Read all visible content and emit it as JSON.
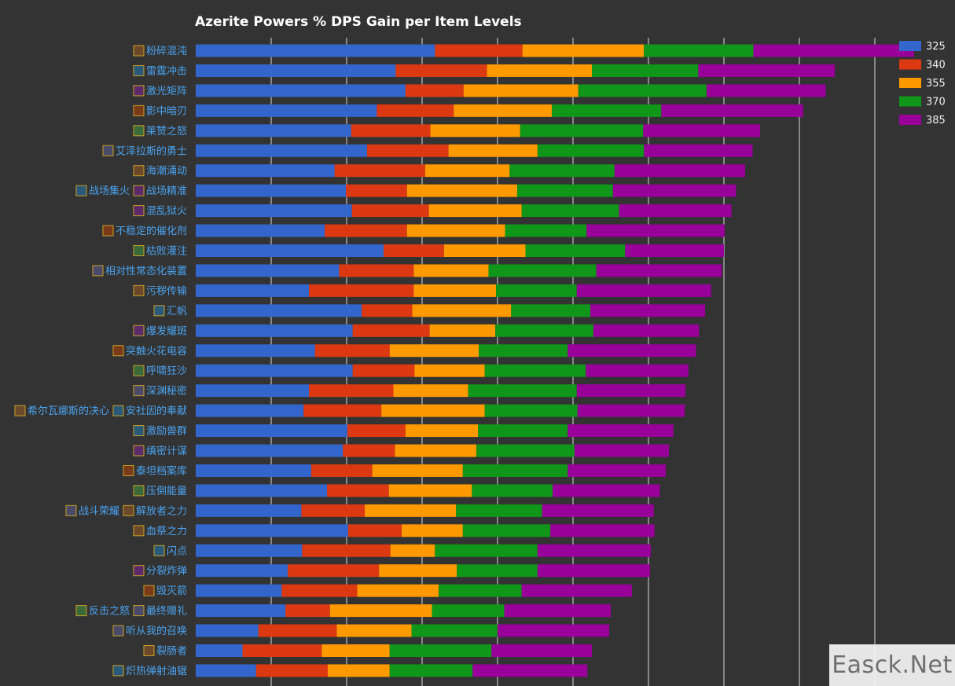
{
  "chart_data": {
    "type": "bar",
    "orientation": "horizontal",
    "stacked": true,
    "title": "Azerite Powers % DPS Gain per Item Levels",
    "xlabel": "",
    "ylabel": "",
    "xlim": [
      0,
      9.4
    ],
    "grid": true,
    "legend_position": "top-right",
    "categories": [
      {
        "parts": [
          "粉碎混沌"
        ],
        "icons": [
          "azerite-power-icon"
        ]
      },
      {
        "parts": [
          "雷霆冲击"
        ],
        "icons": [
          "azerite-power-icon"
        ]
      },
      {
        "parts": [
          "激光矩阵"
        ],
        "icons": [
          "azerite-power-icon"
        ]
      },
      {
        "parts": [
          "影中暗刃"
        ],
        "icons": [
          "azerite-power-icon"
        ]
      },
      {
        "parts": [
          "莱赞之怒"
        ],
        "icons": [
          "azerite-power-icon"
        ]
      },
      {
        "parts": [
          "艾泽拉斯的勇士"
        ],
        "icons": [
          "azerite-power-icon"
        ]
      },
      {
        "parts": [
          "海潮涌动"
        ],
        "icons": [
          "azerite-power-icon"
        ]
      },
      {
        "parts": [
          "战场集火",
          "战场精准"
        ],
        "icons": [
          "azerite-power-icon",
          "azerite-power-icon"
        ]
      },
      {
        "parts": [
          "混乱狱火"
        ],
        "icons": [
          "azerite-power-icon"
        ]
      },
      {
        "parts": [
          "不稳定的催化剂"
        ],
        "icons": [
          "azerite-power-icon"
        ]
      },
      {
        "parts": [
          "枯败灌注"
        ],
        "icons": [
          "azerite-power-icon"
        ]
      },
      {
        "parts": [
          "相对性常态化装置"
        ],
        "icons": [
          "azerite-power-icon"
        ]
      },
      {
        "parts": [
          "污秽传输"
        ],
        "icons": [
          "azerite-power-icon"
        ]
      },
      {
        "parts": [
          "汇帆"
        ],
        "icons": [
          "azerite-power-icon"
        ]
      },
      {
        "parts": [
          "爆发耀斑"
        ],
        "icons": [
          "azerite-power-icon"
        ]
      },
      {
        "parts": [
          "突触火花电容"
        ],
        "icons": [
          "azerite-power-icon"
        ]
      },
      {
        "parts": [
          "呼啸狂沙"
        ],
        "icons": [
          "azerite-power-icon"
        ]
      },
      {
        "parts": [
          "深渊秘密"
        ],
        "icons": [
          "azerite-power-icon"
        ]
      },
      {
        "parts": [
          "希尔瓦娜斯的决心",
          "安社因的奉献"
        ],
        "icons": [
          "azerite-power-icon",
          "azerite-power-icon"
        ]
      },
      {
        "parts": [
          "激励兽群"
        ],
        "icons": [
          "azerite-power-icon"
        ]
      },
      {
        "parts": [
          "缜密计谋"
        ],
        "icons": [
          "azerite-power-icon"
        ]
      },
      {
        "parts": [
          "泰坦档案库"
        ],
        "icons": [
          "azerite-power-icon"
        ]
      },
      {
        "parts": [
          "压倒能量"
        ],
        "icons": [
          "azerite-power-icon"
        ]
      },
      {
        "parts": [
          "战斗荣耀",
          "解放者之力"
        ],
        "icons": [
          "azerite-power-icon",
          "azerite-power-icon"
        ]
      },
      {
        "parts": [
          "血祭之力"
        ],
        "icons": [
          "azerite-power-icon"
        ]
      },
      {
        "parts": [
          "闪点"
        ],
        "icons": [
          "azerite-power-icon"
        ]
      },
      {
        "parts": [
          "分裂炸弹"
        ],
        "icons": [
          "azerite-power-icon"
        ]
      },
      {
        "parts": [
          "毁灭箭"
        ],
        "icons": [
          "azerite-power-icon"
        ]
      },
      {
        "parts": [
          "反击之怒",
          "最终赠礼"
        ],
        "icons": [
          "azerite-power-icon",
          "azerite-power-icon"
        ]
      },
      {
        "parts": [
          "听从我的召唤"
        ],
        "icons": [
          "azerite-power-icon"
        ]
      },
      {
        "parts": [
          "裂肠者"
        ],
        "icons": [
          "azerite-power-icon"
        ]
      },
      {
        "parts": [
          "炽热弹射油锯"
        ],
        "icons": [
          "azerite-power-icon"
        ]
      }
    ],
    "series": [
      {
        "name": "325",
        "color": "#3366cc",
        "values": [
          3.17,
          2.65,
          2.78,
          2.4,
          2.06,
          2.27,
          1.84,
          1.99,
          2.07,
          1.71,
          2.49,
          1.9,
          1.5,
          2.2,
          2.08,
          1.58,
          2.08,
          1.5,
          1.43,
          2.01,
          1.95,
          1.53,
          1.74,
          1.4,
          2.02,
          1.41,
          1.22,
          1.14,
          1.19,
          0.83,
          0.62,
          0.8
        ]
      },
      {
        "name": "340",
        "color": "#dc3912",
        "values": [
          1.16,
          1.21,
          0.77,
          1.02,
          1.05,
          1.08,
          1.2,
          0.81,
          1.02,
          1.09,
          0.8,
          0.99,
          1.39,
          0.67,
          1.02,
          0.99,
          0.82,
          1.12,
          1.03,
          0.77,
          0.69,
          0.81,
          0.82,
          0.84,
          0.71,
          1.17,
          1.21,
          1.0,
          0.59,
          1.04,
          1.05,
          0.95
        ]
      },
      {
        "name": "355",
        "color": "#ff9900",
        "values": [
          1.61,
          1.39,
          1.52,
          1.3,
          1.19,
          1.18,
          1.12,
          1.46,
          1.23,
          1.3,
          1.08,
          0.99,
          1.09,
          1.31,
          0.87,
          1.18,
          0.93,
          0.99,
          1.37,
          0.96,
          1.08,
          1.2,
          1.1,
          1.21,
          0.81,
          0.59,
          1.03,
          1.08,
          1.35,
          0.99,
          0.9,
          0.82
        ]
      },
      {
        "name": "370",
        "color": "#109618",
        "values": [
          1.45,
          1.41,
          1.7,
          1.45,
          1.63,
          1.41,
          1.39,
          1.27,
          1.29,
          1.08,
          1.32,
          1.43,
          1.07,
          1.05,
          1.3,
          1.18,
          1.34,
          1.44,
          1.23,
          1.19,
          1.3,
          1.39,
          1.07,
          1.14,
          1.16,
          1.36,
          1.07,
          1.1,
          0.96,
          1.14,
          1.35,
          1.1
        ]
      },
      {
        "name": "385",
        "color": "#990099",
        "values": [
          2.13,
          1.81,
          1.58,
          1.88,
          1.55,
          1.44,
          1.73,
          1.63,
          1.49,
          1.83,
          1.31,
          1.66,
          1.78,
          1.52,
          1.4,
          1.7,
          1.36,
          1.44,
          1.42,
          1.4,
          1.25,
          1.3,
          1.42,
          1.48,
          1.38,
          1.5,
          1.49,
          1.46,
          1.41,
          1.48,
          1.33,
          1.52
        ]
      }
    ]
  },
  "watermark": "Easck.Net"
}
